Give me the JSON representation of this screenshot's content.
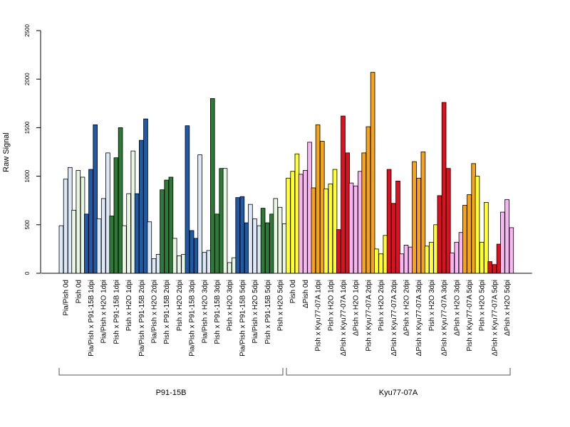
{
  "chart_data": {
    "type": "bar",
    "ylabel": "Raw Signal",
    "ylim": [
      0,
      2500
    ],
    "yticks": [
      0,
      500,
      1000,
      1500,
      2000,
      2500
    ],
    "replicates_per_category": 3,
    "categories": [
      {
        "label": "Pia/Pish 0d",
        "group": "P91-15B",
        "color": "#dce8f7",
        "values": [
          490,
          970,
          1090
        ]
      },
      {
        "label": "Pish 0d",
        "group": "P91-15B",
        "color": "#eaf6e4",
        "values": [
          650,
          1060,
          990
        ]
      },
      {
        "label": "Pia/Pish x P91-15B 1dpi",
        "group": "P91-15B",
        "color": "#1f5aa6",
        "values": [
          610,
          1070,
          1530
        ]
      },
      {
        "label": "Pia/Pish x H2O 1dpi",
        "group": "P91-15B",
        "color": "#dce8f7",
        "values": [
          560,
          770,
          1240
        ]
      },
      {
        "label": "Pish x P91-15B 1dpi",
        "group": "P91-15B",
        "color": "#2c7a36",
        "values": [
          590,
          1190,
          1500
        ]
      },
      {
        "label": "Pish x H2O 1dpi",
        "group": "P91-15B",
        "color": "#eaf6e4",
        "values": [
          490,
          820,
          1260
        ]
      },
      {
        "label": "Pia/Pish x P91-15B 2dpi",
        "group": "P91-15B",
        "color": "#1f5aa6",
        "values": [
          820,
          1370,
          1590
        ]
      },
      {
        "label": "Pia/Pish x H2O 2dpi",
        "group": "P91-15B",
        "color": "#dce8f7",
        "values": [
          530,
          150,
          195
        ]
      },
      {
        "label": "Pish x P91-15B 2dpi",
        "group": "P91-15B",
        "color": "#2c7a36",
        "values": [
          860,
          960,
          990
        ]
      },
      {
        "label": "Pish x H2O 2dpi",
        "group": "P91-15B",
        "color": "#eaf6e4",
        "values": [
          360,
          180,
          195
        ]
      },
      {
        "label": "Pia/Pish x P91-15B 3dpi",
        "group": "P91-15B",
        "color": "#1f5aa6",
        "values": [
          1520,
          440,
          360
        ]
      },
      {
        "label": "Pia/Pish x H2O 3dpi",
        "group": "P91-15B",
        "color": "#dce8f7",
        "values": [
          1220,
          215,
          235
        ]
      },
      {
        "label": "Pish x P91-15B 3dpi",
        "group": "P91-15B",
        "color": "#2c7a36",
        "values": [
          1800,
          610,
          1080
        ]
      },
      {
        "label": "Pish x H2O 3dpi",
        "group": "P91-15B",
        "color": "#eaf6e4",
        "values": [
          1080,
          110,
          160
        ]
      },
      {
        "label": "Pia/Pish x P91-15B 5dpi",
        "group": "P91-15B",
        "color": "#1f5aa6",
        "values": [
          780,
          790,
          520
        ]
      },
      {
        "label": "Pia/Pish x H2O 5dpi",
        "group": "P91-15B",
        "color": "#dce8f7",
        "values": [
          710,
          560,
          490
        ]
      },
      {
        "label": "Pish x P91-15B 5dpi",
        "group": "P91-15B",
        "color": "#2c7a36",
        "values": [
          670,
          520,
          610
        ]
      },
      {
        "label": "Pish x H2O 5dpi",
        "group": "P91-15B",
        "color": "#eaf6e4",
        "values": [
          770,
          680,
          510
        ]
      },
      {
        "label": "Pish 0d",
        "group": "Kyu77-07A",
        "color": "#ffff33",
        "values": [
          980,
          1050,
          1230
        ]
      },
      {
        "label": "ΔPish 0d",
        "group": "Kyu77-07A",
        "color": "#f7b6f2",
        "values": [
          1020,
          1060,
          1350
        ]
      },
      {
        "label": "Pish x Kyu77-07A 1dpi",
        "group": "Kyu77-07A",
        "color": "#f5a31a",
        "values": [
          880,
          1530,
          1360
        ]
      },
      {
        "label": "Pish x H2O 1dpi",
        "group": "Kyu77-07A",
        "color": "#ffff33",
        "values": [
          870,
          920,
          1070
        ]
      },
      {
        "label": "ΔPish x Kyu77-07A 1dpi",
        "group": "Kyu77-07A",
        "color": "#e00f1f",
        "values": [
          450,
          1620,
          1240
        ]
      },
      {
        "label": "ΔPish x H2O 1dpi",
        "group": "Kyu77-07A",
        "color": "#f7b6f2",
        "values": [
          930,
          900,
          1050
        ]
      },
      {
        "label": "Pish x Kyu77-07A 2dpi",
        "group": "Kyu77-07A",
        "color": "#f5a31a",
        "values": [
          1240,
          1510,
          2070
        ]
      },
      {
        "label": "Pish x H2O 2dpi",
        "group": "Kyu77-07A",
        "color": "#ffff33",
        "values": [
          250,
          200,
          390
        ]
      },
      {
        "label": "ΔPish x Kyu77-07A 2dpi",
        "group": "Kyu77-07A",
        "color": "#e00f1f",
        "values": [
          1070,
          720,
          950
        ]
      },
      {
        "label": "ΔPish x H2O 2dpi",
        "group": "Kyu77-07A",
        "color": "#f7b6f2",
        "values": [
          200,
          290,
          270
        ]
      },
      {
        "label": "ΔPish x Kyu77-07A 3dpi",
        "group": "Kyu77-07A",
        "color": "#f5a31a",
        "values": [
          1150,
          980,
          1250
        ]
      },
      {
        "label": "Pish x H2O 3dpi",
        "group": "Kyu77-07A",
        "color": "#ffff33",
        "values": [
          280,
          320,
          500
        ]
      },
      {
        "label": "ΔPish x Kyu77-07A 3dpi",
        "group": "Kyu77-07A",
        "color": "#e00f1f",
        "values": [
          800,
          1760,
          1080
        ]
      },
      {
        "label": "ΔPish x H2O 3dpi",
        "group": "Kyu77-07A",
        "color": "#f7b6f2",
        "values": [
          210,
          320,
          420
        ]
      },
      {
        "label": "Pish x Kyu77-07A 5dpi",
        "group": "Kyu77-07A",
        "color": "#f5a31a",
        "values": [
          700,
          810,
          1130
        ]
      },
      {
        "label": "Pish x H2O 5dpi",
        "group": "Kyu77-07A",
        "color": "#ffff33",
        "values": [
          1000,
          320,
          730
        ]
      },
      {
        "label": "ΔPish x Kyu77-07A 5dpi",
        "group": "Kyu77-07A",
        "color": "#e00f1f",
        "values": [
          120,
          90,
          300
        ]
      },
      {
        "label": "ΔPish x H2O 5dpi",
        "group": "Kyu77-07A",
        "color": "#f7b6f2",
        "values": [
          630,
          760,
          470
        ]
      }
    ],
    "groups": [
      {
        "label": "P91-15B"
      },
      {
        "label": "Kyu77-07A"
      }
    ],
    "legend": null,
    "grid": false
  }
}
